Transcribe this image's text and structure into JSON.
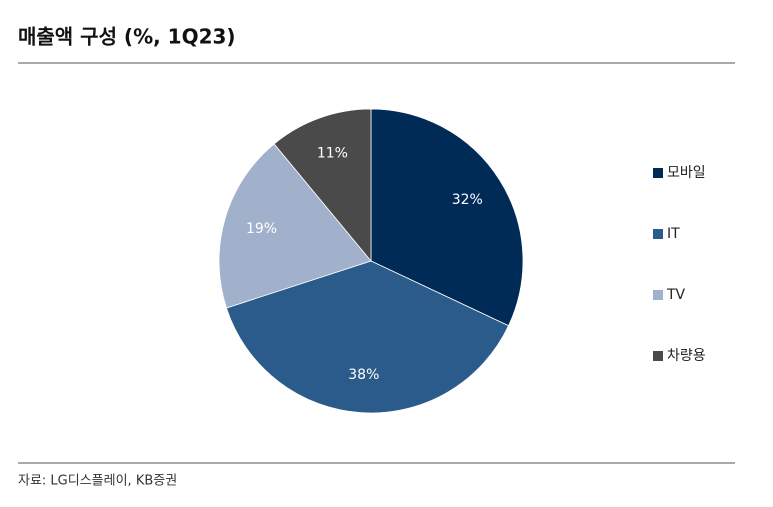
{
  "chart_data": {
    "type": "pie",
    "title": "매출액 구성 (%, 1Q23)",
    "categories": [
      "모바일",
      "IT",
      "TV",
      "차량용"
    ],
    "values": [
      32,
      38,
      19,
      11
    ],
    "value_labels": [
      "32%",
      "38%",
      "19%",
      "11%"
    ],
    "colors": [
      "#002b57",
      "#2b5b8b",
      "#a1b1cc",
      "#4a4a4a"
    ],
    "legend": "right",
    "source": "자료: LG디스플레이, KB증권"
  }
}
